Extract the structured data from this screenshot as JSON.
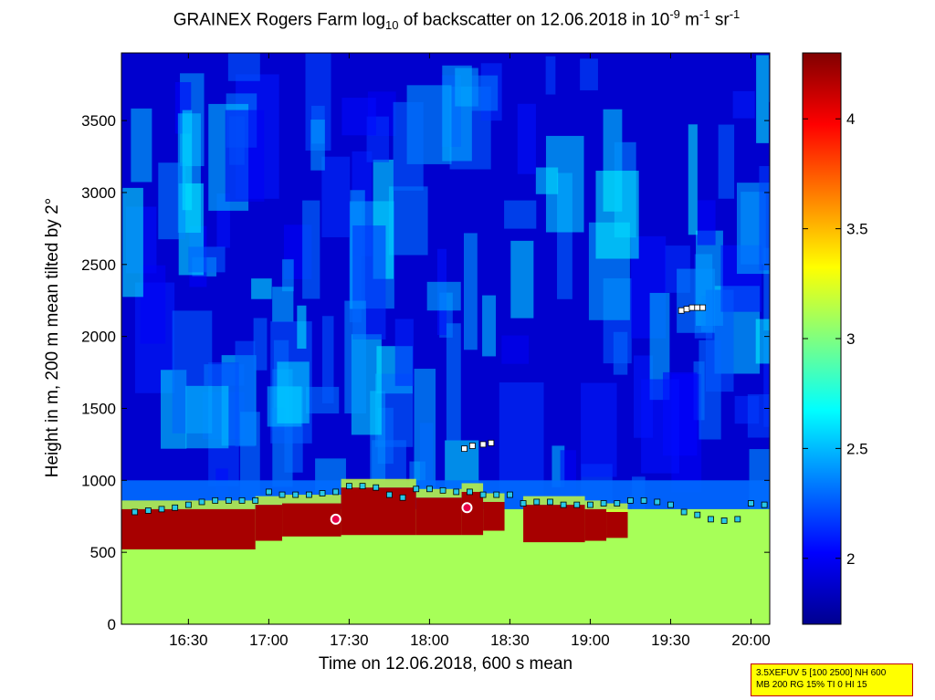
{
  "title": {
    "main": "GRAINEX Rogers Farm log",
    "sub10": "10",
    "middle": " of backscatter on 12.06.2018 in 10",
    "sup1": "-9",
    "unit_m": " m",
    "sup2": "-1",
    "unit_sr": " sr",
    "sup3": "-1"
  },
  "info_box": {
    "line1": "3.5XEFUV 5 [100 2500] NH 600",
    "line2": "MB 200 RG 15% TI 0 HI 15"
  },
  "chart_data": {
    "type": "heatmap",
    "xlabel": "Time on 12.06.2018, 600 s mean",
    "ylabel": "Height in m, 200 m mean tilted by 2°",
    "xlim": [
      "16:05",
      "20:07"
    ],
    "ylim": [
      0,
      3970
    ],
    "x_ticks": [
      "16:30",
      "17:00",
      "17:30",
      "18:00",
      "18:30",
      "19:00",
      "19:30",
      "20:00"
    ],
    "y_ticks": [
      0,
      500,
      1000,
      1500,
      2000,
      2500,
      3000,
      3500
    ],
    "colorbar": {
      "colormap": "jet",
      "clim": [
        1.7,
        4.3
      ],
      "ticks": [
        "2",
        "2.5",
        "3",
        "3.5",
        "4"
      ]
    },
    "layers": {
      "surface_layer_value": 3.1,
      "aerosol_layer_value": 4.2,
      "free_troposphere_value": 1.9,
      "aerosol_layer_segments": [
        {
          "start": "16:05",
          "end": "16:55",
          "bottom": 520,
          "top": 800
        },
        {
          "start": "16:55",
          "end": "17:05",
          "bottom": 580,
          "top": 830
        },
        {
          "start": "17:05",
          "end": "17:27",
          "bottom": 610,
          "top": 840
        },
        {
          "start": "17:27",
          "end": "17:55",
          "bottom": 620,
          "top": 950
        },
        {
          "start": "17:55",
          "end": "18:12",
          "bottom": 620,
          "top": 880
        },
        {
          "start": "18:12",
          "end": "18:20",
          "bottom": 620,
          "top": 920
        },
        {
          "start": "18:20",
          "end": "18:28",
          "bottom": 650,
          "top": 850
        },
        {
          "start": "18:35",
          "end": "18:58",
          "bottom": 570,
          "top": 830
        },
        {
          "start": "18:58",
          "end": "19:06",
          "bottom": 580,
          "top": 800
        },
        {
          "start": "19:06",
          "end": "19:14",
          "bottom": 600,
          "top": 780
        }
      ]
    },
    "series": [
      {
        "marker": "square",
        "color": "#29c8e8",
        "x": [
          "16:10",
          "16:15",
          "16:20",
          "16:25",
          "16:30",
          "16:35",
          "16:40",
          "16:45",
          "16:50",
          "16:55",
          "17:00",
          "17:05",
          "17:10",
          "17:15",
          "17:20",
          "17:25",
          "17:30",
          "17:35",
          "17:40",
          "17:45",
          "17:50",
          "17:55",
          "18:00",
          "18:05",
          "18:10",
          "18:15",
          "18:20",
          "18:25",
          "18:30",
          "18:35",
          "18:40",
          "18:45",
          "18:50",
          "18:55",
          "19:00",
          "19:05",
          "19:10",
          "19:15",
          "19:20",
          "19:25",
          "19:30",
          "19:35",
          "19:40",
          "19:45",
          "19:50",
          "19:55",
          "20:00",
          "20:05"
        ],
        "y": [
          780,
          790,
          800,
          810,
          830,
          850,
          860,
          860,
          860,
          860,
          920,
          900,
          900,
          900,
          910,
          920,
          960,
          960,
          950,
          900,
          880,
          940,
          940,
          930,
          920,
          920,
          900,
          900,
          900,
          840,
          850,
          850,
          830,
          830,
          830,
          840,
          840,
          860,
          860,
          850,
          830,
          780,
          760,
          730,
          720,
          730,
          840,
          830
        ]
      },
      {
        "marker": "square",
        "color": "#ffffff",
        "x": [
          "18:13",
          "18:16",
          "18:20",
          "18:23",
          "19:34",
          "19:36",
          "19:38",
          "19:40",
          "19:42"
        ],
        "y": [
          1220,
          1240,
          1250,
          1260,
          2180,
          2190,
          2200,
          2200,
          2200
        ]
      },
      {
        "marker": "circle",
        "color": "#e8004a",
        "x": [
          "17:25",
          "18:14"
        ],
        "y": [
          730,
          810
        ]
      }
    ]
  }
}
